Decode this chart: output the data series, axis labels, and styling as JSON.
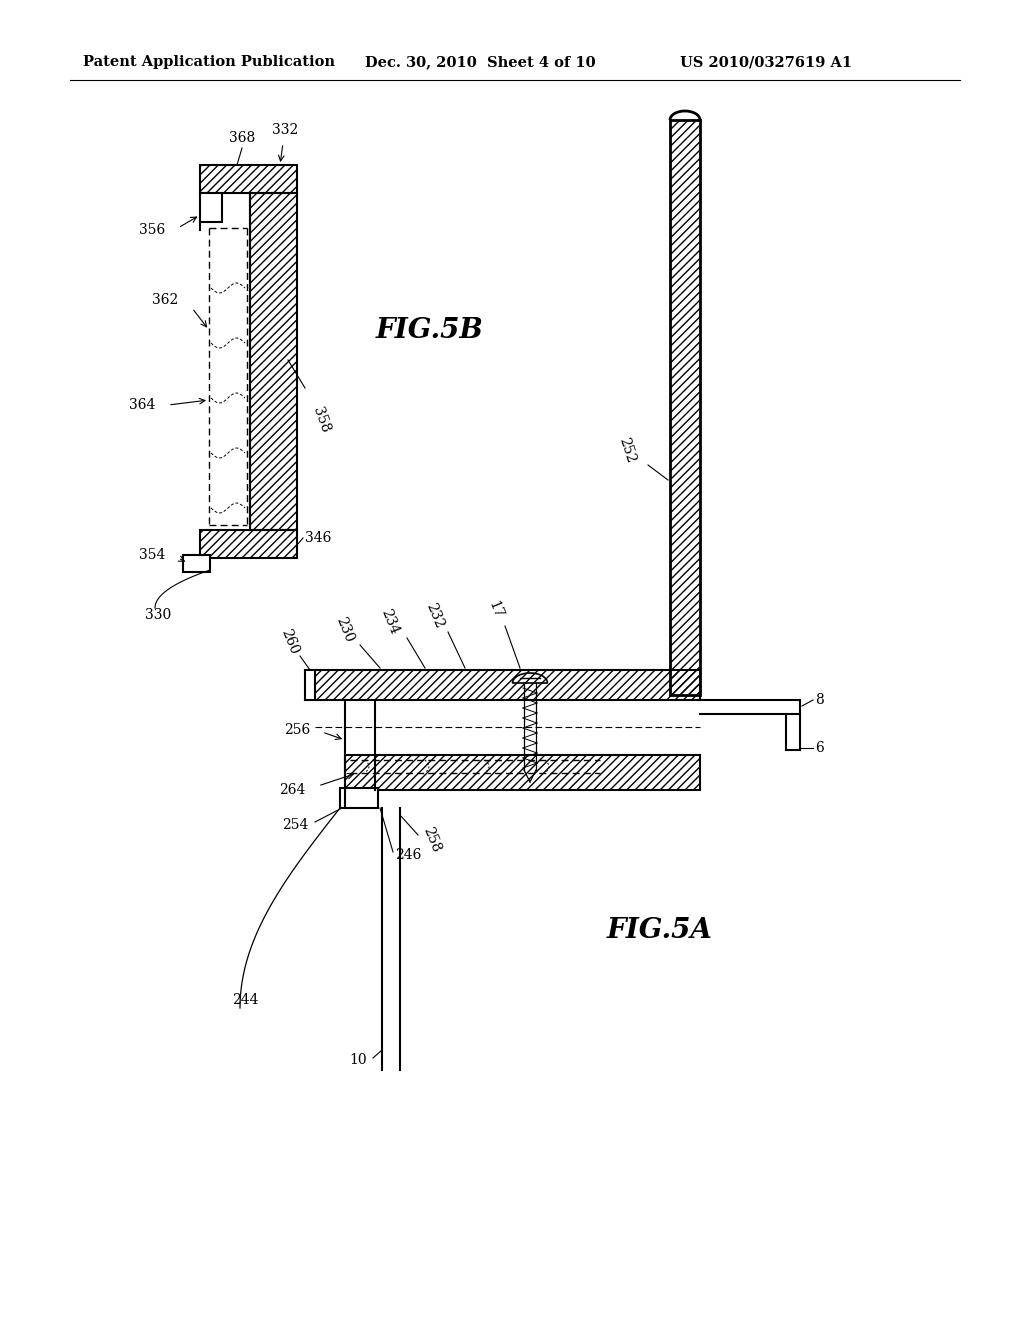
{
  "bg_color": "#ffffff",
  "header_line1": "Patent Application Publication",
  "header_line2": "Dec. 30, 2010  Sheet 4 of 10",
  "header_line3": "US 2010/0327619 A1",
  "fig5b_label": "FIG.5B",
  "fig5a_label": "FIG.5A"
}
